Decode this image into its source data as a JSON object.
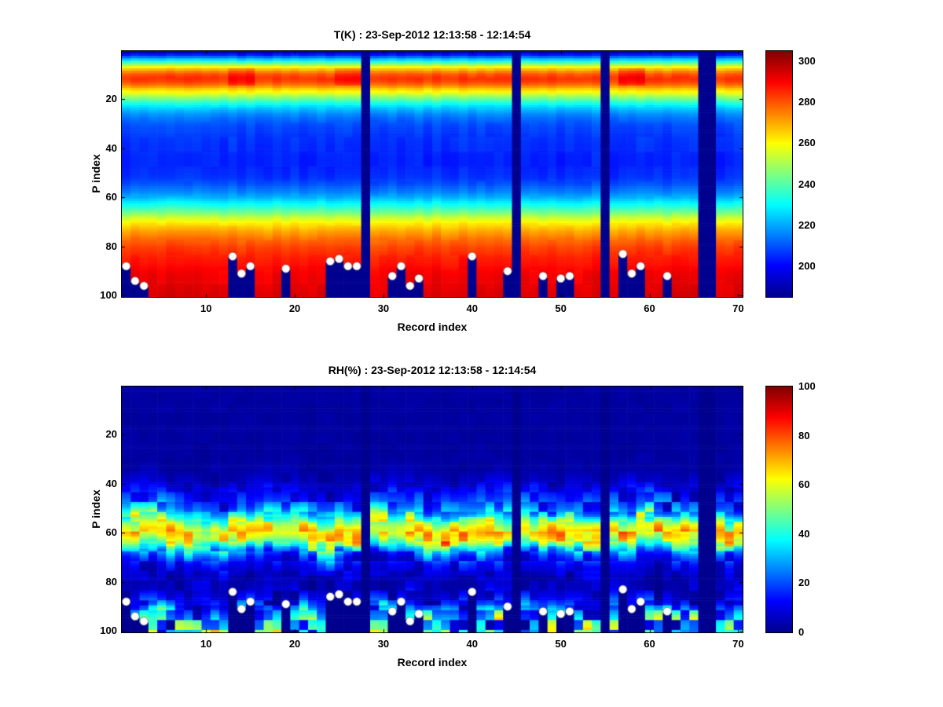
{
  "figure": {
    "colors": {
      "background": "#ffffff",
      "axis": "#000000",
      "masked_gap": "#00008f",
      "surface_marker": "#ffffff"
    }
  },
  "chart_data": [
    {
      "type": "heatmap",
      "panel": "temperature",
      "title": "T(K) : 23-Sep-2012 12:13:58 - 12:14:54",
      "xlabel": "Record index",
      "ylabel": "P index",
      "x_range": [
        1,
        70
      ],
      "y_range": [
        1,
        100
      ],
      "y_axis_reversed": true,
      "grid": false,
      "x_ticks": [
        10,
        20,
        30,
        40,
        50,
        60,
        70
      ],
      "y_ticks": [
        20,
        40,
        60,
        80,
        100
      ],
      "colormap": "jet",
      "color_range": [
        185,
        305
      ],
      "colorbar_ticks": [
        200,
        220,
        240,
        260,
        280,
        300
      ],
      "gap_columns": [
        28,
        45,
        55,
        66,
        67
      ],
      "noise_mode": "additive",
      "noise_amp": 2.5,
      "anomalies": [
        {
          "records": [
            13,
            15
          ],
          "p": [
            8,
            14
          ],
          "amp": 6
        },
        {
          "records": [
            25,
            27
          ],
          "p": [
            8,
            14
          ],
          "amp": 6
        },
        {
          "records": [
            57,
            59
          ],
          "p": [
            8,
            14
          ],
          "amp": 7
        }
      ],
      "profile": [
        [
          1,
          190
        ],
        [
          2,
          202
        ],
        [
          3,
          213
        ],
        [
          4,
          225
        ],
        [
          5,
          237
        ],
        [
          6,
          248
        ],
        [
          7,
          259
        ],
        [
          8,
          268
        ],
        [
          9,
          275
        ],
        [
          10,
          280
        ],
        [
          11,
          283
        ],
        [
          12,
          284
        ],
        [
          13,
          282
        ],
        [
          14,
          278
        ],
        [
          15,
          272
        ],
        [
          16,
          266
        ],
        [
          17,
          261
        ],
        [
          18,
          255
        ],
        [
          19,
          249
        ],
        [
          20,
          243
        ],
        [
          21,
          237
        ],
        [
          22,
          232
        ],
        [
          23,
          227
        ],
        [
          24,
          223
        ],
        [
          25,
          220
        ],
        [
          26,
          217
        ],
        [
          27,
          215
        ],
        [
          28,
          213
        ],
        [
          30,
          210
        ],
        [
          32,
          208
        ],
        [
          34,
          207
        ],
        [
          37,
          206
        ],
        [
          40,
          205
        ],
        [
          44,
          204
        ],
        [
          48,
          204
        ],
        [
          52,
          206
        ],
        [
          55,
          210
        ],
        [
          58,
          216
        ],
        [
          60,
          221
        ],
        [
          62,
          228
        ],
        [
          64,
          235
        ],
        [
          66,
          243
        ],
        [
          68,
          252
        ],
        [
          70,
          260
        ],
        [
          72,
          266
        ],
        [
          74,
          271
        ],
        [
          76,
          275
        ],
        [
          78,
          279
        ],
        [
          80,
          282
        ],
        [
          82,
          284
        ],
        [
          85,
          287
        ],
        [
          88,
          289
        ],
        [
          91,
          291
        ],
        [
          94,
          292
        ],
        [
          100,
          294
        ]
      ],
      "surface_dots": [
        [
          1,
          88
        ],
        [
          2,
          94
        ],
        [
          3,
          96
        ],
        [
          13,
          84
        ],
        [
          14,
          91
        ],
        [
          15,
          88
        ],
        [
          19,
          89
        ],
        [
          24,
          86
        ],
        [
          25,
          85
        ],
        [
          26,
          88
        ],
        [
          27,
          88
        ],
        [
          31,
          92
        ],
        [
          32,
          88
        ],
        [
          33,
          96
        ],
        [
          34,
          93
        ],
        [
          40,
          84
        ],
        [
          44,
          90
        ],
        [
          48,
          92
        ],
        [
          50,
          93
        ],
        [
          51,
          92
        ],
        [
          57,
          83
        ],
        [
          58,
          91
        ],
        [
          59,
          88
        ],
        [
          62,
          92
        ]
      ]
    },
    {
      "type": "heatmap",
      "panel": "relative-humidity",
      "title": "RH(%) : 23-Sep-2012 12:13:58 - 12:14:54",
      "xlabel": "Record index",
      "ylabel": "P index",
      "x_range": [
        1,
        70
      ],
      "y_range": [
        1,
        100
      ],
      "y_axis_reversed": true,
      "grid": false,
      "x_ticks": [
        10,
        20,
        30,
        40,
        50,
        60,
        70
      ],
      "y_ticks": [
        20,
        40,
        60,
        80,
        100
      ],
      "colormap": "jet",
      "color_range": [
        0,
        100
      ],
      "colorbar_ticks": [
        0,
        20,
        40,
        60,
        80,
        100
      ],
      "gap_columns": [
        28,
        45,
        55,
        66,
        67
      ],
      "noise_mode": "multiplicative",
      "band_shift": 3,
      "noise_amp_profile": [
        [
          1,
          0.5
        ],
        [
          35,
          0.7
        ],
        [
          40,
          1.0
        ],
        [
          50,
          0.9
        ],
        [
          54,
          0.45
        ],
        [
          58,
          0.3
        ],
        [
          62,
          0.3
        ],
        [
          66,
          0.6
        ],
        [
          70,
          0.9
        ],
        [
          76,
          1.1
        ],
        [
          82,
          1.2
        ],
        [
          90,
          1.25
        ],
        [
          100,
          1.3
        ]
      ],
      "profile": [
        [
          1,
          2
        ],
        [
          30,
          2
        ],
        [
          35,
          3
        ],
        [
          38,
          5
        ],
        [
          41,
          8
        ],
        [
          44,
          12
        ],
        [
          47,
          16
        ],
        [
          50,
          22
        ],
        [
          52,
          30
        ],
        [
          54,
          42
        ],
        [
          56,
          54
        ],
        [
          58,
          63
        ],
        [
          60,
          68
        ],
        [
          62,
          63
        ],
        [
          64,
          52
        ],
        [
          66,
          38
        ],
        [
          68,
          26
        ],
        [
          70,
          18
        ],
        [
          72,
          12
        ],
        [
          75,
          8
        ],
        [
          78,
          5
        ],
        [
          82,
          5
        ],
        [
          85,
          8
        ],
        [
          88,
          13
        ],
        [
          90,
          18
        ],
        [
          93,
          26
        ],
        [
          96,
          33
        ],
        [
          100,
          38
        ]
      ],
      "surface_dots": [
        [
          1,
          88
        ],
        [
          2,
          94
        ],
        [
          3,
          96
        ],
        [
          13,
          84
        ],
        [
          14,
          91
        ],
        [
          15,
          88
        ],
        [
          19,
          89
        ],
        [
          24,
          86
        ],
        [
          25,
          85
        ],
        [
          26,
          88
        ],
        [
          27,
          88
        ],
        [
          31,
          92
        ],
        [
          32,
          88
        ],
        [
          33,
          96
        ],
        [
          34,
          93
        ],
        [
          40,
          84
        ],
        [
          44,
          90
        ],
        [
          48,
          92
        ],
        [
          50,
          93
        ],
        [
          51,
          92
        ],
        [
          57,
          83
        ],
        [
          58,
          91
        ],
        [
          59,
          88
        ],
        [
          62,
          92
        ]
      ]
    }
  ]
}
